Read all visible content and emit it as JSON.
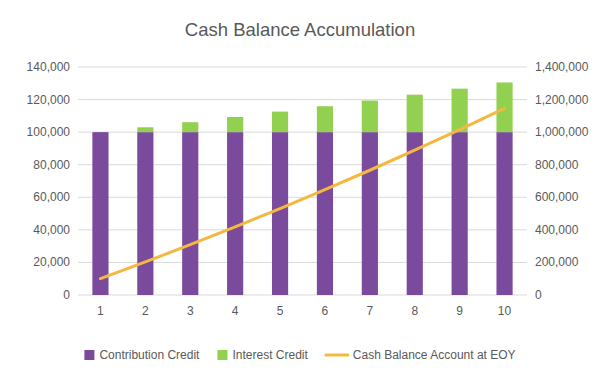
{
  "chart_data": {
    "type": "bar",
    "title": "Cash Balance Accumulation",
    "categories": [
      "1",
      "2",
      "3",
      "4",
      "5",
      "6",
      "7",
      "8",
      "9",
      "10"
    ],
    "series": [
      {
        "name": "Contribution Credit",
        "type": "bar",
        "color": "#7a4a9c",
        "values": [
          100000,
          100000,
          100000,
          100000,
          100000,
          100000,
          100000,
          100000,
          100000,
          100000
        ]
      },
      {
        "name": "Interest Credit",
        "type": "bar",
        "color": "#92d050",
        "values": [
          0,
          3000,
          6100,
          9300,
          12600,
          15900,
          19400,
          23000,
          26700,
          30500
        ]
      },
      {
        "name": "Cash Balance Account at EOY",
        "type": "line",
        "axis": "y2",
        "color": "#f4b83f",
        "values": [
          100000,
          203000,
          309000,
          418000,
          531000,
          647000,
          766000,
          889000,
          1016000,
          1146000
        ]
      }
    ],
    "ylim": [
      0,
      140000
    ],
    "yticks": [
      0,
      {
        "value": 20000,
        "label": "20,000"
      },
      {
        "value": 40000,
        "label": "40,000"
      },
      {
        "value": 60000,
        "label": "60,000"
      },
      {
        "value": 80000,
        "label": "80,000"
      },
      {
        "value": 100000,
        "label": "100,000"
      },
      {
        "value": 120000,
        "label": "120,000"
      },
      {
        "value": 140000,
        "label": "140,000"
      }
    ],
    "y2lim": [
      0,
      1400000
    ],
    "y2ticks": [
      0,
      {
        "value": 200000,
        "label": "200,000"
      },
      {
        "value": 400000,
        "label": "400,000"
      },
      {
        "value": 600000,
        "label": "600,000"
      },
      {
        "value": 800000,
        "label": "800,000"
      },
      {
        "value": 1000000,
        "label": "1,000,000"
      },
      {
        "value": 1200000,
        "label": "1,200,000"
      },
      {
        "value": 1400000,
        "label": "1,400,000"
      }
    ],
    "stacked": true,
    "grid": true,
    "legend": "bottom"
  }
}
